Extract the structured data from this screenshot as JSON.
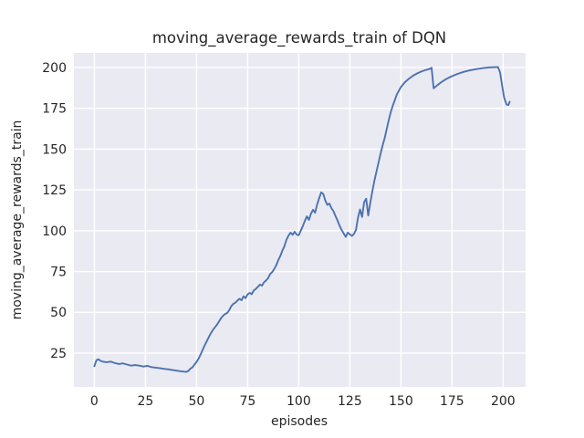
{
  "colors": {
    "figure_bg": "#ffffff",
    "axes_bg": "#eaeaf2",
    "grid": "#ffffff",
    "line": "#4c72b0",
    "text": "#262626"
  },
  "chart_data": {
    "type": "line",
    "title": "moving_average_rewards_train of DQN",
    "xlabel": "episodes",
    "ylabel": "moving_average_rewards_train",
    "x_ticks": [
      0,
      25,
      50,
      75,
      100,
      125,
      150,
      175,
      200
    ],
    "y_ticks": [
      25,
      50,
      75,
      100,
      125,
      150,
      175,
      200
    ],
    "xlim": [
      -10,
      211
    ],
    "ylim": [
      4.3,
      208.9
    ],
    "grid": true,
    "legend_position": "none",
    "style": "seaborn-darkgrid",
    "series": [
      {
        "name": "moving_average_rewards_train",
        "color": "#4c72b0",
        "x": [
          0,
          1,
          2,
          3,
          4,
          6,
          8,
          10,
          12,
          14,
          16,
          18,
          20,
          22,
          24,
          26,
          28,
          30,
          32,
          34,
          36,
          38,
          40,
          42,
          44,
          45,
          46,
          47,
          48,
          49,
          50,
          51,
          52,
          53,
          54,
          55,
          56,
          57,
          58,
          59,
          60,
          61,
          62,
          63,
          64,
          65,
          66,
          67,
          68,
          69,
          70,
          71,
          72,
          73,
          74,
          75,
          76,
          77,
          78,
          79,
          80,
          81,
          82,
          83,
          84,
          85,
          86,
          87,
          88,
          89,
          90,
          91,
          92,
          93,
          94,
          95,
          96,
          97,
          98,
          99,
          100,
          101,
          102,
          103,
          104,
          105,
          106,
          107,
          108,
          109,
          110,
          111,
          112,
          113,
          114,
          115,
          116,
          117,
          118,
          119,
          120,
          121,
          122,
          123,
          124,
          125,
          126,
          127,
          128,
          129,
          130,
          131,
          132,
          133,
          134,
          135,
          136,
          137,
          138,
          139,
          140,
          141,
          142,
          143,
          144,
          145,
          146,
          147,
          148,
          150,
          152,
          154,
          156,
          158,
          160,
          162,
          164,
          165,
          166,
          168,
          170,
          172,
          174,
          176,
          178,
          181,
          184,
          187,
          190,
          193,
          196,
          197.5,
          198.5,
          199.5,
          200.5,
          201.7,
          202.6,
          203.2
        ],
        "y": [
          17.0,
          20.6,
          21.2,
          20.3,
          19.8,
          19.4,
          19.8,
          18.9,
          18.3,
          18.7,
          18.0,
          17.3,
          17.7,
          17.3,
          16.8,
          17.2,
          16.4,
          16.1,
          15.8,
          15.4,
          15.1,
          14.7,
          14.3,
          13.9,
          13.6,
          13.5,
          14.1,
          15.5,
          16.3,
          18.0,
          19.6,
          21.6,
          24.2,
          27.0,
          29.8,
          32.3,
          34.8,
          37.2,
          39.2,
          40.8,
          42.4,
          44.4,
          46.4,
          47.9,
          49.0,
          49.6,
          51.3,
          53.8,
          55.2,
          55.9,
          57.2,
          58.3,
          57.4,
          59.8,
          58.7,
          61.0,
          61.9,
          61.1,
          63.4,
          64.3,
          65.6,
          67.0,
          66.3,
          68.4,
          69.5,
          70.9,
          73.4,
          74.6,
          76.5,
          78.8,
          82.0,
          84.5,
          87.8,
          90.5,
          94.5,
          97.0,
          98.8,
          97.5,
          99.3,
          97.6,
          97.2,
          100.0,
          102.8,
          106.0,
          108.8,
          106.6,
          110.5,
          112.8,
          111.0,
          116.0,
          120.0,
          123.5,
          122.5,
          118.5,
          115.8,
          116.6,
          113.8,
          111.9,
          109.0,
          106.2,
          103.0,
          100.5,
          98.3,
          96.2,
          98.8,
          97.8,
          96.8,
          98.0,
          100.5,
          108.0,
          113.0,
          108.4,
          117.5,
          119.6,
          109.3,
          117.0,
          124.0,
          130.5,
          136.0,
          141.5,
          147.0,
          152.0,
          156.5,
          162.0,
          167.5,
          172.5,
          176.5,
          180.0,
          183.5,
          188.0,
          191.0,
          193.2,
          195.0,
          196.4,
          197.5,
          198.4,
          199.1,
          199.8,
          187.2,
          189.3,
          191.2,
          192.8,
          194.1,
          195.2,
          196.2,
          197.4,
          198.3,
          199.0,
          199.6,
          200.0,
          200.2,
          200.2,
          197.0,
          189.0,
          181.5,
          177.3,
          177.0,
          179.0
        ]
      }
    ]
  }
}
